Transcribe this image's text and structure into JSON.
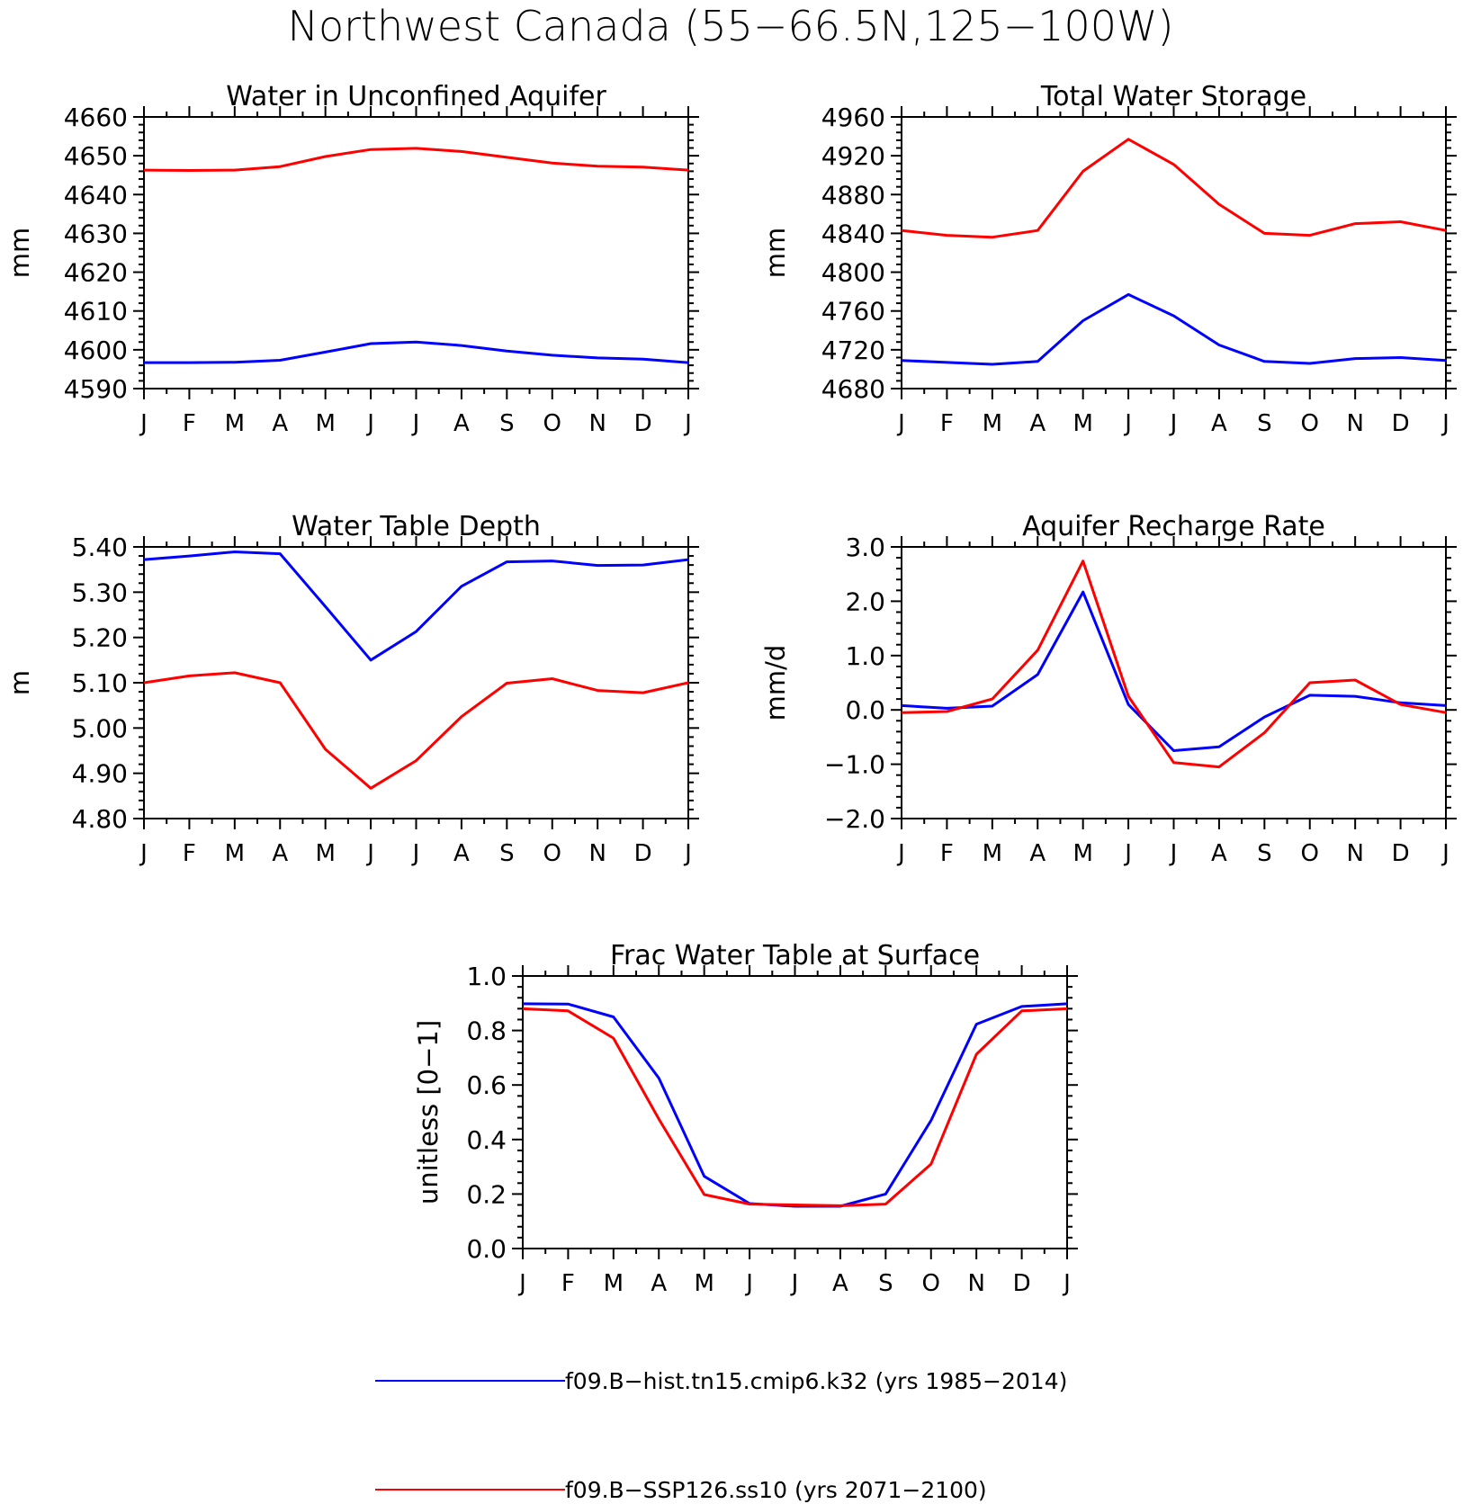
{
  "figure_title": "Northwest Canada (55−66.5N,125−100W)",
  "legend": [
    {
      "label": "f09.B−hist.tn15.cmip6.k32 (yrs 1985−2014)",
      "color": "#0000ff"
    },
    {
      "label": "f09.B−SSP126.ss10 (yrs 2071−2100)",
      "color": "#ff0000"
    }
  ],
  "chart_data": [
    {
      "type": "line",
      "title": "Water in Unconfined Aquifer",
      "ylabel": "mm",
      "x": [
        "J",
        "F",
        "M",
        "A",
        "M",
        "J",
        "J",
        "A",
        "S",
        "O",
        "N",
        "D",
        "J"
      ],
      "ylim": [
        4590,
        4660
      ],
      "yticks": [
        4590,
        4600,
        4610,
        4620,
        4630,
        4640,
        4650,
        4660
      ],
      "ytick_labels": [
        "4590",
        "4600",
        "4610",
        "4620",
        "4630",
        "4640",
        "4650",
        "4660"
      ],
      "series": [
        {
          "name": "f09.B−hist.tn15.cmip6.k32 (yrs 1985−2014)",
          "color": "#0000ff",
          "values": [
            4596.7,
            4596.7,
            4596.8,
            4597.3,
            4599.4,
            4601.6,
            4602.0,
            4601.1,
            4599.7,
            4598.6,
            4597.9,
            4597.6,
            4596.7
          ]
        },
        {
          "name": "f09.B−SSP126.ss10 (yrs 2071−2100)",
          "color": "#ff0000",
          "values": [
            4646.3,
            4646.2,
            4646.3,
            4647.2,
            4649.8,
            4651.6,
            4651.9,
            4651.1,
            4649.6,
            4648.1,
            4647.3,
            4647.1,
            4646.3
          ]
        }
      ]
    },
    {
      "type": "line",
      "title": "Total Water Storage",
      "ylabel": "mm",
      "x": [
        "J",
        "F",
        "M",
        "A",
        "M",
        "J",
        "J",
        "A",
        "S",
        "O",
        "N",
        "D",
        "J"
      ],
      "ylim": [
        4680,
        4960
      ],
      "yticks": [
        4680,
        4720,
        4760,
        4800,
        4840,
        4880,
        4920,
        4960
      ],
      "ytick_labels": [
        "4680",
        "4720",
        "4760",
        "4800",
        "4840",
        "4880",
        "4920",
        "4960"
      ],
      "series": [
        {
          "name": "f09.B−hist.tn15.cmip6.k32 (yrs 1985−2014)",
          "color": "#0000ff",
          "values": [
            4709,
            4707,
            4705,
            4708,
            4750,
            4777,
            4755,
            4725,
            4708,
            4706,
            4711,
            4712,
            4709
          ]
        },
        {
          "name": "f09.B−SSP126.ss10 (yrs 2071−2100)",
          "color": "#ff0000",
          "values": [
            4843,
            4838,
            4836,
            4843,
            4904,
            4937,
            4911,
            4870,
            4840,
            4838,
            4850,
            4852,
            4843
          ]
        }
      ]
    },
    {
      "type": "line",
      "title": "Water Table Depth",
      "ylabel": "m",
      "x": [
        "J",
        "F",
        "M",
        "A",
        "M",
        "J",
        "J",
        "A",
        "S",
        "O",
        "N",
        "D",
        "J"
      ],
      "ylim": [
        4.8,
        5.4
      ],
      "yticks": [
        4.8,
        4.9,
        5.0,
        5.1,
        5.2,
        5.3,
        5.4
      ],
      "ytick_labels": [
        "4.80",
        "4.90",
        "5.00",
        "5.10",
        "5.20",
        "5.30",
        "5.40"
      ],
      "series": [
        {
          "name": "f09.B−hist.tn15.cmip6.k32 (yrs 1985−2014)",
          "color": "#0000ff",
          "values": [
            5.372,
            5.38,
            5.389,
            5.385,
            5.268,
            5.15,
            5.213,
            5.313,
            5.367,
            5.369,
            5.359,
            5.36,
            5.372
          ]
        },
        {
          "name": "f09.B−SSP126.ss10 (yrs 2071−2100)",
          "color": "#ff0000",
          "values": [
            5.1,
            5.115,
            5.122,
            5.1,
            4.953,
            4.867,
            4.928,
            5.025,
            5.099,
            5.109,
            5.083,
            5.078,
            5.1
          ]
        }
      ]
    },
    {
      "type": "line",
      "title": "Aquifer Recharge Rate",
      "ylabel": "mm/d",
      "x": [
        "J",
        "F",
        "M",
        "A",
        "M",
        "J",
        "J",
        "A",
        "S",
        "O",
        "N",
        "D",
        "J"
      ],
      "ylim": [
        -2.0,
        3.0
      ],
      "yticks": [
        -2.0,
        -1.0,
        0.0,
        1.0,
        2.0,
        3.0
      ],
      "ytick_labels": [
        "−2.0",
        "−1.0",
        "0.0",
        "1.0",
        "2.0",
        "3.0"
      ],
      "series": [
        {
          "name": "f09.B−hist.tn15.cmip6.k32 (yrs 1985−2014)",
          "color": "#0000ff",
          "values": [
            0.08,
            0.03,
            0.07,
            0.65,
            2.17,
            0.1,
            -0.75,
            -0.68,
            -0.13,
            0.27,
            0.25,
            0.13,
            0.08
          ]
        },
        {
          "name": "f09.B−SSP126.ss10 (yrs 2071−2100)",
          "color": "#ff0000",
          "values": [
            -0.05,
            -0.03,
            0.2,
            1.1,
            2.74,
            0.25,
            -0.97,
            -1.05,
            -0.42,
            0.5,
            0.55,
            0.1,
            -0.05
          ]
        }
      ]
    },
    {
      "type": "line",
      "title": "Frac Water Table at Surface",
      "ylabel": "unitless [0−1]",
      "x": [
        "J",
        "F",
        "M",
        "A",
        "M",
        "J",
        "J",
        "A",
        "S",
        "O",
        "N",
        "D",
        "J"
      ],
      "ylim": [
        0.0,
        1.0
      ],
      "yticks": [
        0.0,
        0.2,
        0.4,
        0.6,
        0.8,
        1.0
      ],
      "ytick_labels": [
        "0.0",
        "0.2",
        "0.4",
        "0.6",
        "0.8",
        "1.0"
      ],
      "series": [
        {
          "name": "f09.B−hist.tn15.cmip6.k32 (yrs 1985−2014)",
          "color": "#0000ff",
          "values": [
            0.898,
            0.897,
            0.85,
            0.625,
            0.265,
            0.165,
            0.155,
            0.155,
            0.2,
            0.47,
            0.823,
            0.888,
            0.898
          ]
        },
        {
          "name": "f09.B−SSP126.ss10 (yrs 2071−2100)",
          "color": "#ff0000",
          "values": [
            0.88,
            0.872,
            0.772,
            0.475,
            0.198,
            0.163,
            0.16,
            0.157,
            0.163,
            0.31,
            0.713,
            0.872,
            0.88
          ]
        }
      ]
    }
  ]
}
